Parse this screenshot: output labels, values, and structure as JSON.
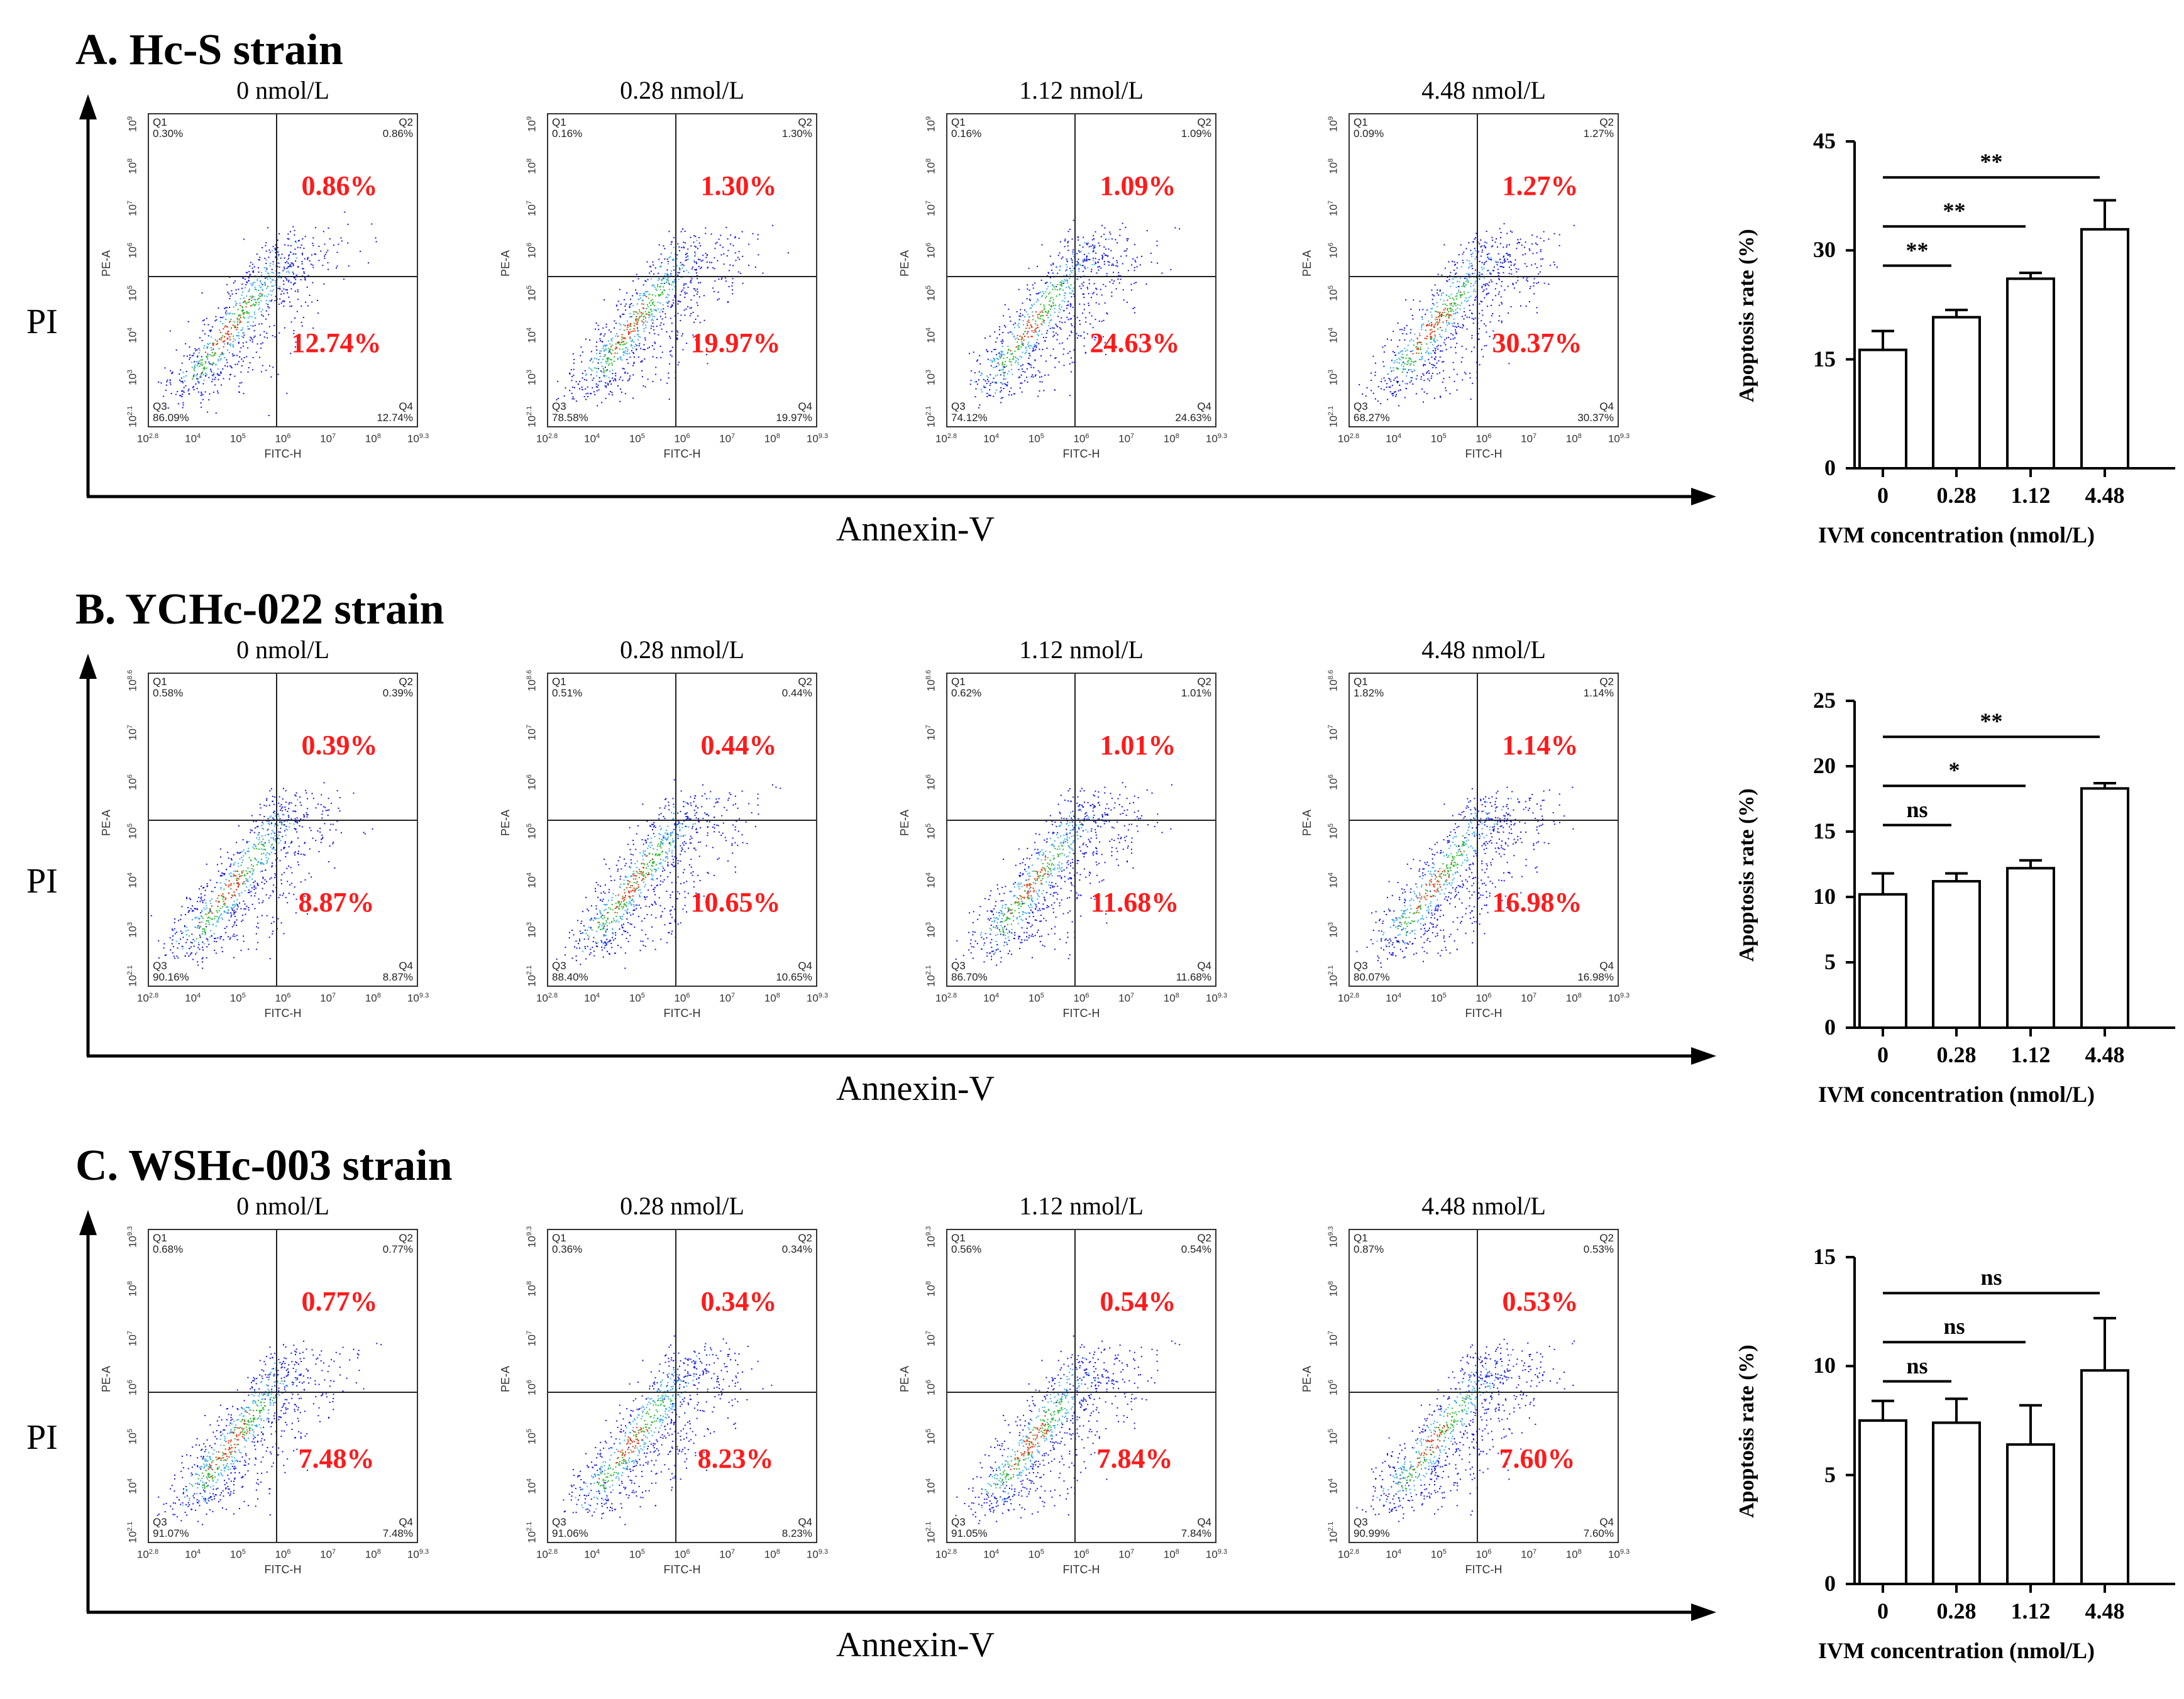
{
  "x_axis_label": "Annexin-V",
  "y_axis_label": "PI",
  "flow_x_axis_name": "FITC-H",
  "flow_y_axis_name": "PE-A",
  "colors": {
    "highlight": "#ff1a1a",
    "dots": "#0000ee",
    "axis": "#000000"
  },
  "chart_data": [
    {
      "type": "scatter",
      "title": "A. Hc-S strain",
      "flow_y_ticks": [
        "10^9",
        "10^8",
        "10^7",
        "10^6",
        "10^5",
        "10^4",
        "10^3",
        "10^2.1"
      ],
      "flow_x_ticks": [
        "10^2.8",
        "10^4",
        "10^5",
        "10^6",
        "10^7",
        "10^8",
        "10^9.3"
      ],
      "plots": [
        {
          "concentration": "0 nmol/L",
          "q1": "0.30%",
          "q2": "0.86%",
          "q3": "86.09%",
          "q4": "12.74%",
          "q2_big": "0.86%",
          "q4_big": "12.74%"
        },
        {
          "concentration": "0.28 nmol/L",
          "q1": "0.16%",
          "q2": "1.30%",
          "q3": "78.58%",
          "q4": "19.97%",
          "q2_big": "1.30%",
          "q4_big": "19.97%"
        },
        {
          "concentration": "1.12 nmol/L",
          "q1": "0.16%",
          "q2": "1.09%",
          "q3": "74.12%",
          "q4": "24.63%",
          "q2_big": "1.09%",
          "q4_big": "24.63%"
        },
        {
          "concentration": "4.48 nmol/L",
          "q1": "0.09%",
          "q2": "1.27%",
          "q3": "68.27%",
          "q4": "30.37%",
          "q2_big": "1.27%",
          "q4_big": "30.37%"
        }
      ],
      "bar": {
        "type": "bar",
        "categories": [
          "0",
          "0.28",
          "1.12",
          "4.48"
        ],
        "values": [
          16.3,
          20.8,
          26.1,
          32.9
        ],
        "errors": [
          2.6,
          1.0,
          0.8,
          4.0
        ],
        "ylim": [
          0,
          45
        ],
        "yticks": [
          0,
          15,
          30,
          45
        ],
        "ylabel": "Apoptosis rate (%)",
        "xlabel": "IVM concentration (nmol/L)",
        "significance": [
          {
            "from": 0,
            "to": 1,
            "label": "**"
          },
          {
            "from": 0,
            "to": 2,
            "label": "**"
          },
          {
            "from": 0,
            "to": 3,
            "label": "**"
          }
        ]
      }
    },
    {
      "type": "scatter",
      "title": "B. YCHc-022 strain",
      "flow_y_ticks": [
        "10^8.6",
        "10^7",
        "10^6",
        "10^5",
        "10^4",
        "10^3",
        "10^2.1"
      ],
      "flow_x_ticks": [
        "10^2.8",
        "10^4",
        "10^5",
        "10^6",
        "10^7",
        "10^8",
        "10^9.3"
      ],
      "plots": [
        {
          "concentration": "0 nmol/L",
          "q1": "0.58%",
          "q2": "0.39%",
          "q3": "90.16%",
          "q4": "8.87%",
          "q2_big": "0.39%",
          "q4_big": "8.87%"
        },
        {
          "concentration": "0.28 nmol/L",
          "q1": "0.51%",
          "q2": "0.44%",
          "q3": "88.40%",
          "q4": "10.65%",
          "q2_big": "0.44%",
          "q4_big": "10.65%"
        },
        {
          "concentration": "1.12 nmol/L",
          "q1": "0.62%",
          "q2": "1.01%",
          "q3": "86.70%",
          "q4": "11.68%",
          "q2_big": "1.01%",
          "q4_big": "11.68%"
        },
        {
          "concentration": "4.48 nmol/L",
          "q1": "1.82%",
          "q2": "1.14%",
          "q3": "80.07%",
          "q4": "16.98%",
          "q2_big": "1.14%",
          "q4_big": "16.98%"
        }
      ],
      "bar": {
        "type": "bar",
        "categories": [
          "0",
          "0.28",
          "1.12",
          "4.48"
        ],
        "values": [
          10.2,
          11.2,
          12.2,
          18.3
        ],
        "errors": [
          1.6,
          0.6,
          0.6,
          0.4
        ],
        "ylim": [
          0,
          25
        ],
        "yticks": [
          0,
          5,
          10,
          15,
          20,
          25
        ],
        "ylabel": "Apoptosis rate (%)",
        "xlabel": "IVM concentration (nmol/L)",
        "significance": [
          {
            "from": 0,
            "to": 1,
            "label": "ns"
          },
          {
            "from": 0,
            "to": 2,
            "label": "*"
          },
          {
            "from": 0,
            "to": 3,
            "label": "**"
          }
        ]
      }
    },
    {
      "type": "scatter",
      "title": "C. WSHc-003 strain",
      "flow_y_ticks": [
        "10^9.3",
        "10^8",
        "10^7",
        "10^6",
        "10^5",
        "10^4",
        "10^2.1"
      ],
      "flow_x_ticks": [
        "10^2.8",
        "10^4",
        "10^5",
        "10^6",
        "10^7",
        "10^8",
        "10^9.3"
      ],
      "plots": [
        {
          "concentration": "0 nmol/L",
          "q1": "0.68%",
          "q2": "0.77%",
          "q3": "91.07%",
          "q4": "7.48%",
          "q2_big": "0.77%",
          "q4_big": "7.48%"
        },
        {
          "concentration": "0.28 nmol/L",
          "q1": "0.36%",
          "q2": "0.34%",
          "q3": "91.06%",
          "q4": "8.23%",
          "q2_big": "0.34%",
          "q4_big": "8.23%"
        },
        {
          "concentration": "1.12 nmol/L",
          "q1": "0.56%",
          "q2": "0.54%",
          "q3": "91.05%",
          "q4": "7.84%",
          "q2_big": "0.54%",
          "q4_big": "7.84%"
        },
        {
          "concentration": "4.48 nmol/L",
          "q1": "0.87%",
          "q2": "0.53%",
          "q3": "90.99%",
          "q4": "7.60%",
          "q2_big": "0.53%",
          "q4_big": "7.60%"
        }
      ],
      "bar": {
        "type": "bar",
        "categories": [
          "0",
          "0.28",
          "1.12",
          "4.48"
        ],
        "values": [
          7.5,
          7.4,
          6.4,
          9.8
        ],
        "errors": [
          0.9,
          1.1,
          1.8,
          2.4
        ],
        "ylim": [
          0,
          15
        ],
        "yticks": [
          0,
          5,
          10,
          15
        ],
        "ylabel": "Apoptosis rate (%)",
        "xlabel": "IVM concentration (nmol/L)",
        "significance": [
          {
            "from": 0,
            "to": 1,
            "label": "ns"
          },
          {
            "from": 0,
            "to": 2,
            "label": "ns"
          },
          {
            "from": 0,
            "to": 3,
            "label": "ns"
          }
        ]
      }
    }
  ]
}
